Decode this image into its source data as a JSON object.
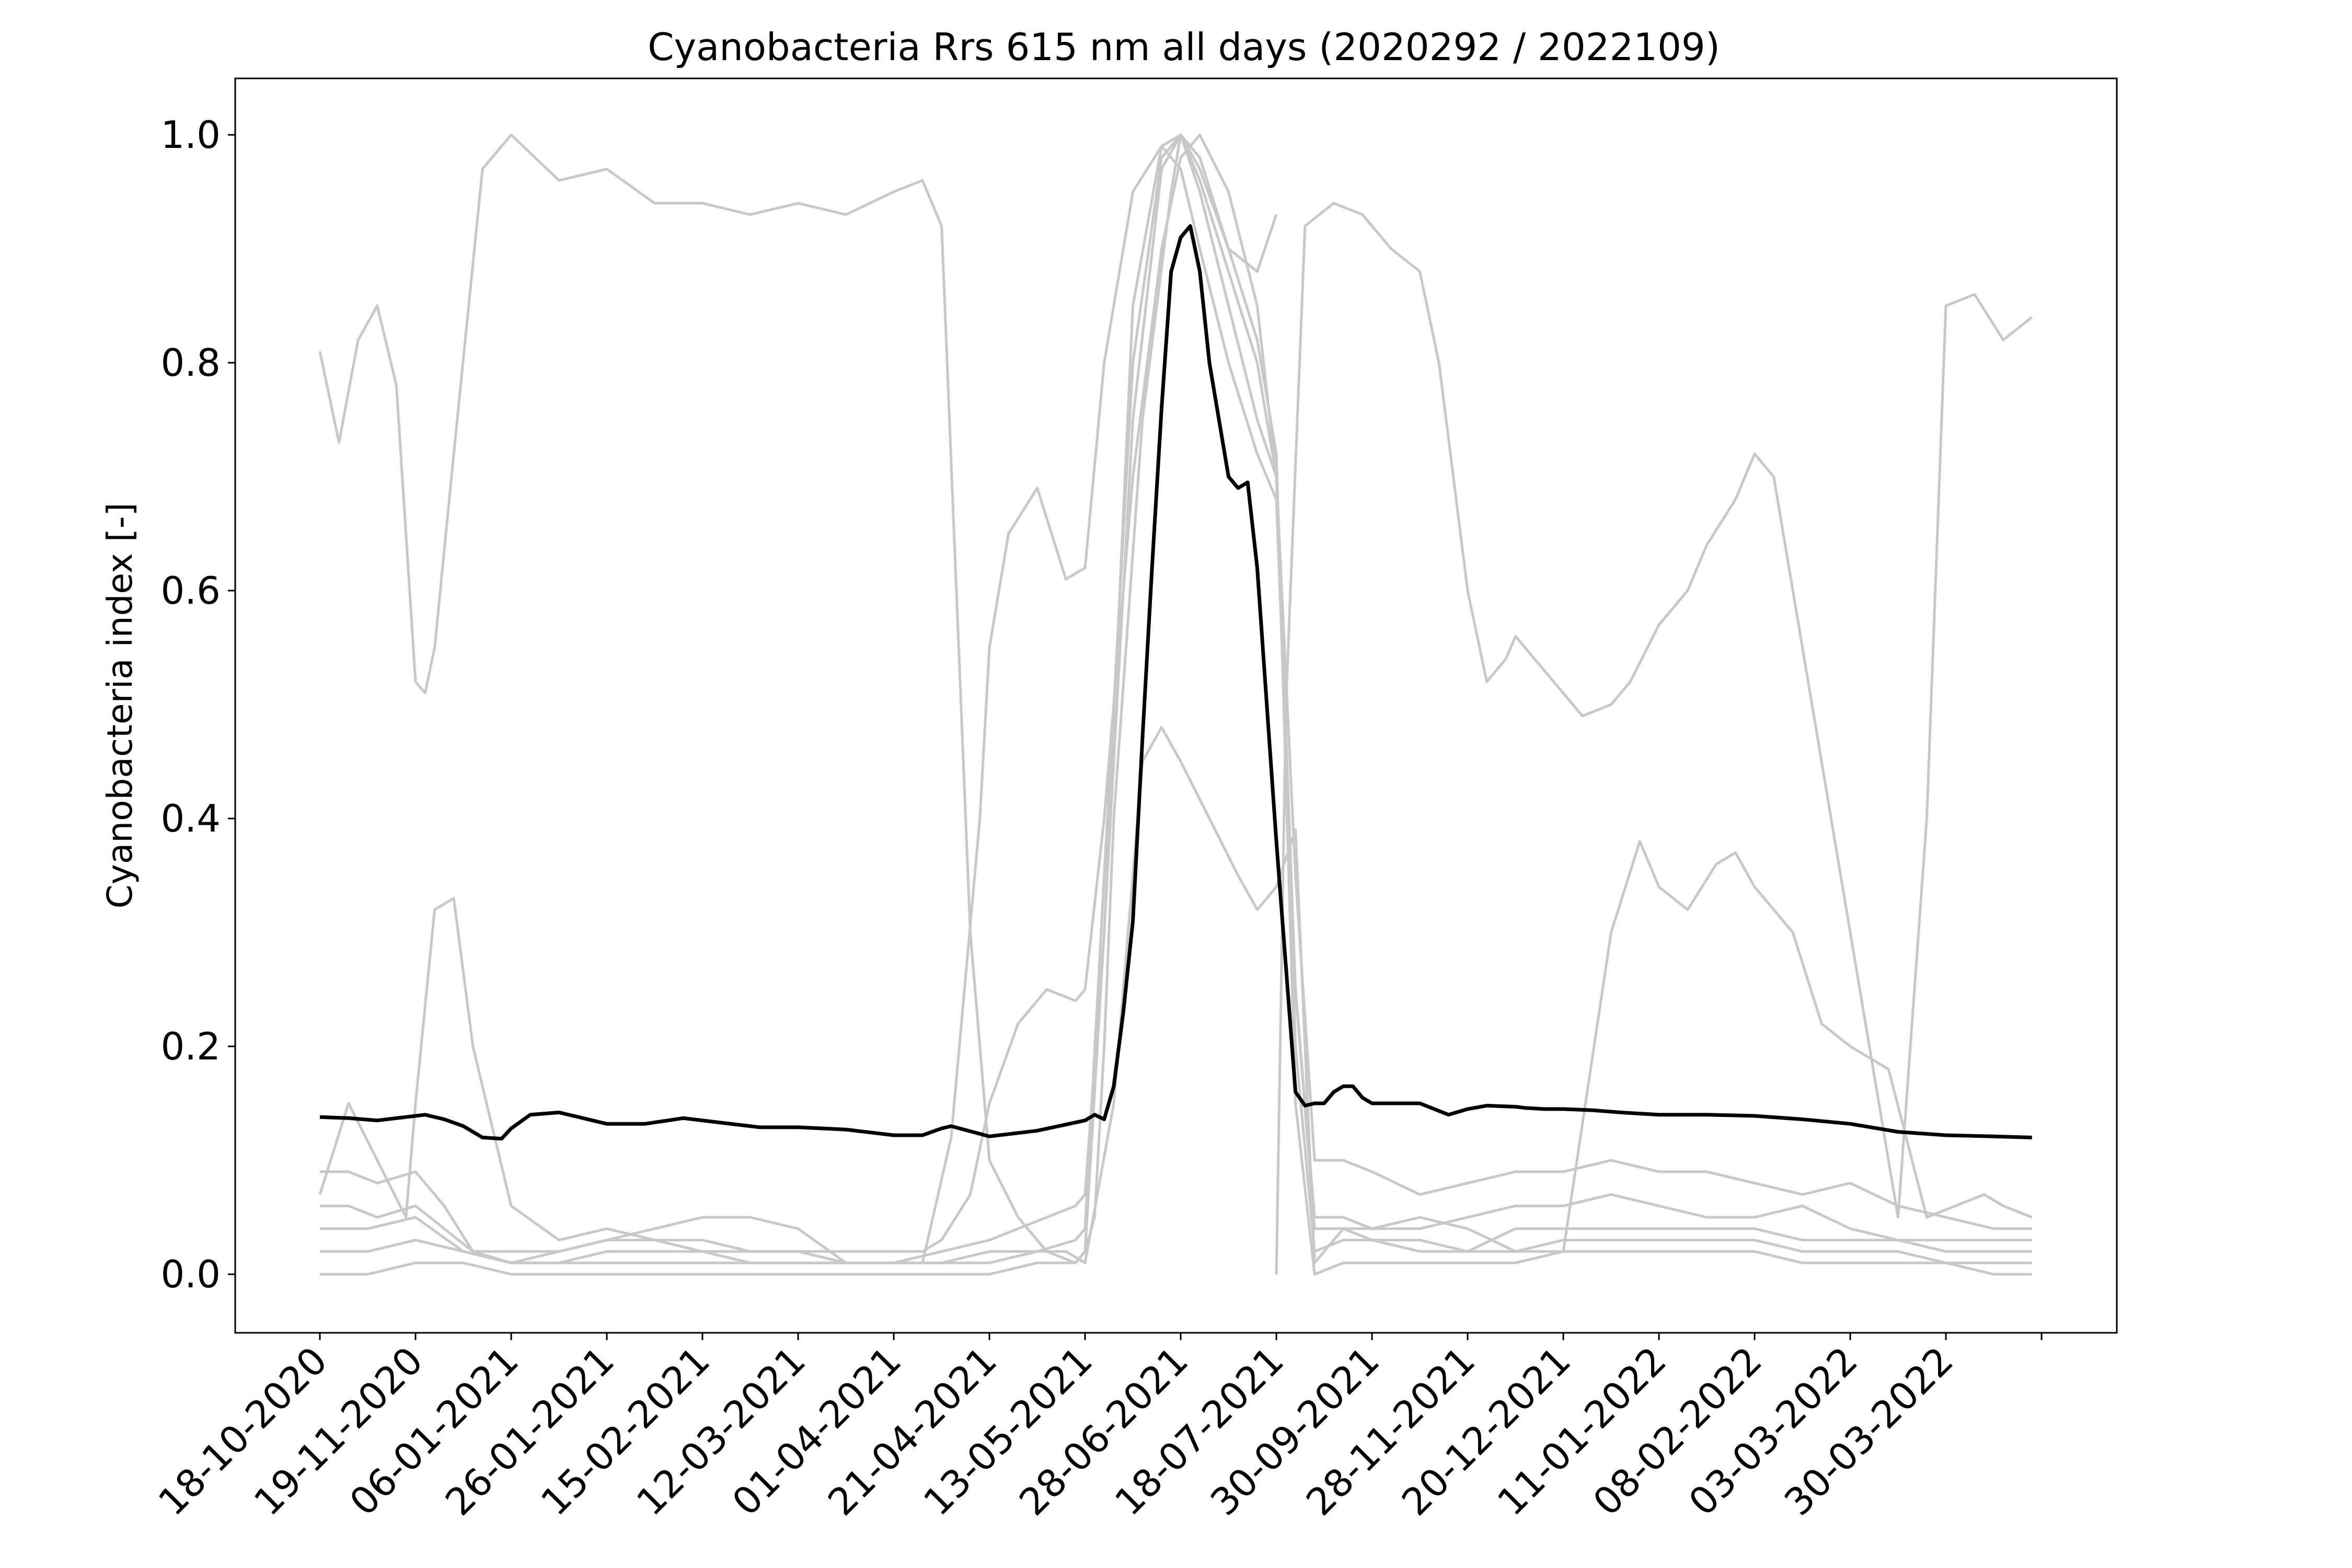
{
  "chart_data": {
    "type": "line",
    "title": "Cyanobacteria Rrs 615 nm all days (2020292 / 2022109)",
    "xlabel": "",
    "ylabel": "Cyanobacteria index [-]",
    "ylim": [
      -0.05,
      1.05
    ],
    "yticks": [
      "0.0",
      "0.2",
      "0.4",
      "0.6",
      "0.8",
      "1.0"
    ],
    "x_tick_labels": [
      "18-10-2020",
      "19-11-2020",
      "06-01-2021",
      "26-01-2021",
      "15-02-2021",
      "12-03-2021",
      "01-04-2021",
      "21-04-2021",
      "13-05-2021",
      "28-06-2021",
      "18-07-2021",
      "30-09-2021",
      "28-11-2021",
      "20-12-2021",
      "11-01-2022",
      "08-02-2022",
      "03-03-2022",
      "30-03-2022"
    ],
    "x_tick_count": 19,
    "x_note": "x values are positions on the tick-index scale (0 = 18-10-2020 ... 17 = 30-03-2022, 18 = last unlabeled tick)",
    "grid": false,
    "colors": {
      "mean": "#000000",
      "background_series": "#c8c8c8"
    },
    "series": [
      {
        "role": "mean",
        "x": [
          0,
          0.3,
          0.6,
          0.9,
          1.1,
          1.3,
          1.5,
          1.7,
          1.9,
          2.0,
          2.2,
          2.5,
          3.0,
          3.4,
          3.8,
          4.2,
          4.6,
          5.0,
          5.5,
          6.0,
          6.3,
          6.5,
          6.6,
          7.0,
          7.5,
          8.0,
          8.1,
          8.2,
          8.3,
          8.4,
          8.5,
          8.6,
          8.7,
          8.8,
          8.9,
          9.0,
          9.1,
          9.2,
          9.3,
          9.4,
          9.5,
          9.6,
          9.7,
          9.8,
          9.9,
          10.0,
          10.1,
          10.2,
          10.3,
          10.4,
          10.5,
          10.6,
          10.7,
          10.8,
          10.9,
          11.0,
          11.2,
          11.5,
          11.8,
          12.0,
          12.2,
          12.5,
          12.6,
          12.8,
          13.0,
          13.3,
          13.6,
          13.8,
          14.0,
          14.5,
          15.0,
          15.5,
          16.0,
          16.5,
          17.0,
          17.5,
          17.9
        ],
        "y": [
          0.138,
          0.137,
          0.135,
          0.138,
          0.14,
          0.136,
          0.13,
          0.12,
          0.119,
          0.128,
          0.14,
          0.142,
          0.132,
          0.132,
          0.137,
          0.133,
          0.129,
          0.129,
          0.127,
          0.122,
          0.122,
          0.128,
          0.13,
          0.121,
          0.126,
          0.135,
          0.14,
          0.136,
          0.165,
          0.23,
          0.31,
          0.47,
          0.62,
          0.76,
          0.88,
          0.91,
          0.92,
          0.88,
          0.8,
          0.75,
          0.7,
          0.69,
          0.695,
          0.62,
          0.5,
          0.38,
          0.27,
          0.16,
          0.148,
          0.15,
          0.15,
          0.16,
          0.165,
          0.165,
          0.155,
          0.15,
          0.15,
          0.15,
          0.14,
          0.145,
          0.148,
          0.147,
          0.146,
          0.145,
          0.145,
          0.144,
          0.142,
          0.141,
          0.14,
          0.14,
          0.139,
          0.136,
          0.132,
          0.125,
          0.122,
          0.121,
          0.12
        ]
      },
      {
        "role": "background",
        "x": [
          0,
          0.2,
          0.4,
          0.6,
          0.8,
          1.0,
          1.1,
          1.2,
          1.4,
          1.7,
          2.0,
          2.5,
          3.0,
          3.5,
          4.0,
          4.5,
          5.0,
          5.5,
          6.0,
          6.3,
          6.5,
          6.8,
          7.0,
          7.3,
          7.6,
          7.9,
          8.0,
          8.1,
          8.2,
          8.3,
          8.6,
          8.9,
          9.0,
          9.2,
          9.5,
          9.8,
          10.0
        ],
        "y": [
          0.81,
          0.73,
          0.82,
          0.85,
          0.78,
          0.52,
          0.51,
          0.55,
          0.72,
          0.97,
          1.0,
          0.96,
          0.97,
          0.94,
          0.94,
          0.93,
          0.94,
          0.93,
          0.95,
          0.96,
          0.92,
          0.3,
          0.1,
          0.05,
          0.02,
          0.01,
          0.02,
          0.05,
          0.2,
          0.4,
          0.75,
          0.95,
          1.0,
          0.98,
          0.9,
          0.88,
          0.93
        ]
      },
      {
        "role": "background",
        "x": [
          10.0,
          10.1,
          10.3,
          10.6,
          10.9,
          11.2,
          11.5,
          11.7,
          12.0,
          12.2,
          12.4,
          12.5,
          12.6,
          12.9,
          13.2,
          13.5,
          13.7,
          14.0,
          14.3,
          14.5,
          14.8,
          15.0,
          15.2,
          15.5,
          15.7,
          16.0,
          16.3,
          16.5,
          16.8,
          17.0,
          17.3,
          17.6,
          17.9
        ],
        "y": [
          0.0,
          0.5,
          0.92,
          0.94,
          0.93,
          0.9,
          0.88,
          0.8,
          0.6,
          0.52,
          0.54,
          0.56,
          0.55,
          0.52,
          0.49,
          0.5,
          0.52,
          0.57,
          0.6,
          0.64,
          0.68,
          0.72,
          0.7,
          0.55,
          0.45,
          0.3,
          0.15,
          0.05,
          0.4,
          0.85,
          0.86,
          0.82,
          0.84
        ]
      },
      {
        "role": "background",
        "x": [
          0,
          0.3,
          0.6,
          0.9,
          1.0,
          1.2,
          1.4,
          1.6,
          2.0,
          2.5,
          3.0,
          3.5,
          4.0,
          4.5,
          5.0,
          5.5,
          6.0,
          6.5,
          7.0,
          7.5,
          7.8,
          8.0,
          8.3,
          8.6,
          8.8,
          9.0,
          9.3,
          9.6,
          9.8,
          10.0,
          10.2,
          10.4,
          10.7,
          11.0,
          11.5,
          12.0,
          12.5,
          13.0,
          13.5,
          13.8,
          14.0,
          14.3,
          14.6,
          14.8,
          15.0,
          15.4,
          15.7,
          16.0,
          16.4,
          16.8,
          17.1,
          17.4,
          17.6,
          17.9
        ],
        "y": [
          0.07,
          0.15,
          0.1,
          0.05,
          0.15,
          0.32,
          0.33,
          0.2,
          0.06,
          0.03,
          0.04,
          0.03,
          0.03,
          0.02,
          0.02,
          0.01,
          0.01,
          0.01,
          0.02,
          0.02,
          0.02,
          0.01,
          0.15,
          0.45,
          0.48,
          0.45,
          0.4,
          0.35,
          0.32,
          0.34,
          0.39,
          0.01,
          0.04,
          0.04,
          0.05,
          0.04,
          0.02,
          0.02,
          0.3,
          0.38,
          0.34,
          0.32,
          0.36,
          0.37,
          0.34,
          0.3,
          0.22,
          0.2,
          0.18,
          0.05,
          0.06,
          0.07,
          0.06,
          0.05
        ]
      },
      {
        "role": "background",
        "x": [
          0,
          0.3,
          0.6,
          1.0,
          1.3,
          1.6,
          2.0,
          2.5,
          3.0,
          3.5,
          4.0,
          4.5,
          5.0,
          5.5,
          6.0,
          6.3,
          6.5,
          6.8,
          7.0,
          7.3,
          7.6,
          7.9,
          8.0,
          8.2,
          8.5,
          8.8,
          9.0,
          9.2,
          9.5,
          9.8,
          10.0,
          10.2,
          10.4,
          10.7,
          11.0,
          11.5,
          12.0,
          12.5,
          13.0,
          13.5,
          14.0,
          14.5,
          15.0,
          15.5,
          16.0,
          16.5,
          17.0,
          17.5,
          17.9
        ],
        "y": [
          0.09,
          0.09,
          0.08,
          0.09,
          0.06,
          0.02,
          0.01,
          0.02,
          0.03,
          0.03,
          0.02,
          0.02,
          0.02,
          0.02,
          0.02,
          0.02,
          0.03,
          0.07,
          0.15,
          0.22,
          0.25,
          0.24,
          0.25,
          0.4,
          0.7,
          0.9,
          0.98,
          1.0,
          0.95,
          0.85,
          0.7,
          0.35,
          0.1,
          0.1,
          0.09,
          0.07,
          0.08,
          0.09,
          0.09,
          0.1,
          0.09,
          0.09,
          0.08,
          0.07,
          0.08,
          0.06,
          0.05,
          0.04,
          0.04
        ]
      },
      {
        "role": "background",
        "x": [
          0,
          0.3,
          0.6,
          1.0,
          1.3,
          1.6,
          2.0,
          2.5,
          3.0,
          3.5,
          4.0,
          4.5,
          5.0,
          5.5,
          6.0,
          6.3,
          6.6,
          6.9,
          7.0,
          7.2,
          7.5,
          7.8,
          8.0,
          8.2,
          8.5,
          8.8,
          9.0,
          9.2,
          9.5,
          9.8,
          10.0,
          10.2,
          10.4,
          10.7,
          11.0,
          11.5,
          12.0,
          12.5,
          13.0,
          13.5,
          14.0,
          14.5,
          15.0,
          15.5,
          16.0,
          16.5,
          17.0,
          17.5,
          17.9
        ],
        "y": [
          0.06,
          0.06,
          0.05,
          0.06,
          0.04,
          0.02,
          0.02,
          0.02,
          0.03,
          0.04,
          0.05,
          0.05,
          0.04,
          0.01,
          0.01,
          0.01,
          0.12,
          0.4,
          0.55,
          0.65,
          0.69,
          0.61,
          0.62,
          0.8,
          0.95,
          0.99,
          0.97,
          0.9,
          0.8,
          0.72,
          0.68,
          0.25,
          0.05,
          0.05,
          0.04,
          0.04,
          0.05,
          0.06,
          0.06,
          0.07,
          0.06,
          0.05,
          0.05,
          0.06,
          0.04,
          0.03,
          0.03,
          0.03,
          0.03
        ]
      },
      {
        "role": "background",
        "x": [
          0,
          0.5,
          1.0,
          1.5,
          2.0,
          2.5,
          3.0,
          3.5,
          4.0,
          4.5,
          5.0,
          5.5,
          6.0,
          6.5,
          7.0,
          7.3,
          7.6,
          7.9,
          8.0,
          8.2,
          8.5,
          8.8,
          9.0,
          9.2,
          9.5,
          9.8,
          10.0,
          10.2,
          10.4,
          10.7,
          11.0,
          11.5,
          12.0,
          12.5,
          13.0,
          13.5,
          14.0,
          14.5,
          15.0,
          15.5,
          16.0,
          16.5,
          17.0,
          17.5,
          17.9
        ],
        "y": [
          0.04,
          0.04,
          0.05,
          0.02,
          0.01,
          0.01,
          0.02,
          0.02,
          0.02,
          0.01,
          0.01,
          0.01,
          0.01,
          0.02,
          0.03,
          0.04,
          0.05,
          0.06,
          0.07,
          0.3,
          0.75,
          0.97,
          1.0,
          0.95,
          0.85,
          0.75,
          0.7,
          0.25,
          0.04,
          0.04,
          0.03,
          0.03,
          0.02,
          0.04,
          0.04,
          0.04,
          0.04,
          0.04,
          0.04,
          0.03,
          0.03,
          0.03,
          0.02,
          0.02,
          0.02
        ]
      },
      {
        "role": "background",
        "x": [
          0,
          0.5,
          1.0,
          1.5,
          2.0,
          2.5,
          3.0,
          3.5,
          4.0,
          4.5,
          5.0,
          5.5,
          6.0,
          6.5,
          7.0,
          7.5,
          7.9,
          8.0,
          8.2,
          8.5,
          8.8,
          9.0,
          9.2,
          9.5,
          9.8,
          10.0,
          10.2,
          10.4,
          10.7,
          11.0,
          11.5,
          12.0,
          12.5,
          13.0,
          13.5,
          14.0,
          14.5,
          15.0,
          15.5,
          16.0,
          16.5,
          17.0,
          17.5,
          17.9
        ],
        "y": [
          0.02,
          0.02,
          0.03,
          0.02,
          0.01,
          0.01,
          0.01,
          0.01,
          0.01,
          0.01,
          0.01,
          0.01,
          0.01,
          0.01,
          0.01,
          0.02,
          0.03,
          0.04,
          0.35,
          0.8,
          0.98,
          1.0,
          0.96,
          0.88,
          0.8,
          0.7,
          0.2,
          0.02,
          0.03,
          0.03,
          0.02,
          0.02,
          0.02,
          0.03,
          0.03,
          0.03,
          0.03,
          0.03,
          0.02,
          0.02,
          0.02,
          0.01,
          0.01,
          0.01
        ]
      },
      {
        "role": "background",
        "x": [
          0,
          0.5,
          1.0,
          1.5,
          2.0,
          2.5,
          3.0,
          3.5,
          4.0,
          4.5,
          5.0,
          5.5,
          6.0,
          6.5,
          7.0,
          7.5,
          7.9,
          8.0,
          8.2,
          8.5,
          8.8,
          9.0,
          9.2,
          9.5,
          9.8,
          10.0,
          10.2,
          10.4,
          10.7,
          11.0,
          11.5,
          12.0,
          12.5,
          13.0,
          13.5,
          14.0,
          14.5,
          15.0,
          15.5,
          16.0,
          16.5,
          17.0,
          17.5,
          17.9
        ],
        "y": [
          0.0,
          0.0,
          0.01,
          0.01,
          0.0,
          0.0,
          0.0,
          0.0,
          0.0,
          0.0,
          0.0,
          0.0,
          0.0,
          0.0,
          0.0,
          0.01,
          0.01,
          0.02,
          0.3,
          0.85,
          0.99,
          1.0,
          0.97,
          0.9,
          0.82,
          0.72,
          0.15,
          0.0,
          0.01,
          0.01,
          0.01,
          0.01,
          0.01,
          0.02,
          0.02,
          0.02,
          0.02,
          0.02,
          0.01,
          0.01,
          0.01,
          0.01,
          0.0,
          0.0
        ]
      }
    ]
  }
}
